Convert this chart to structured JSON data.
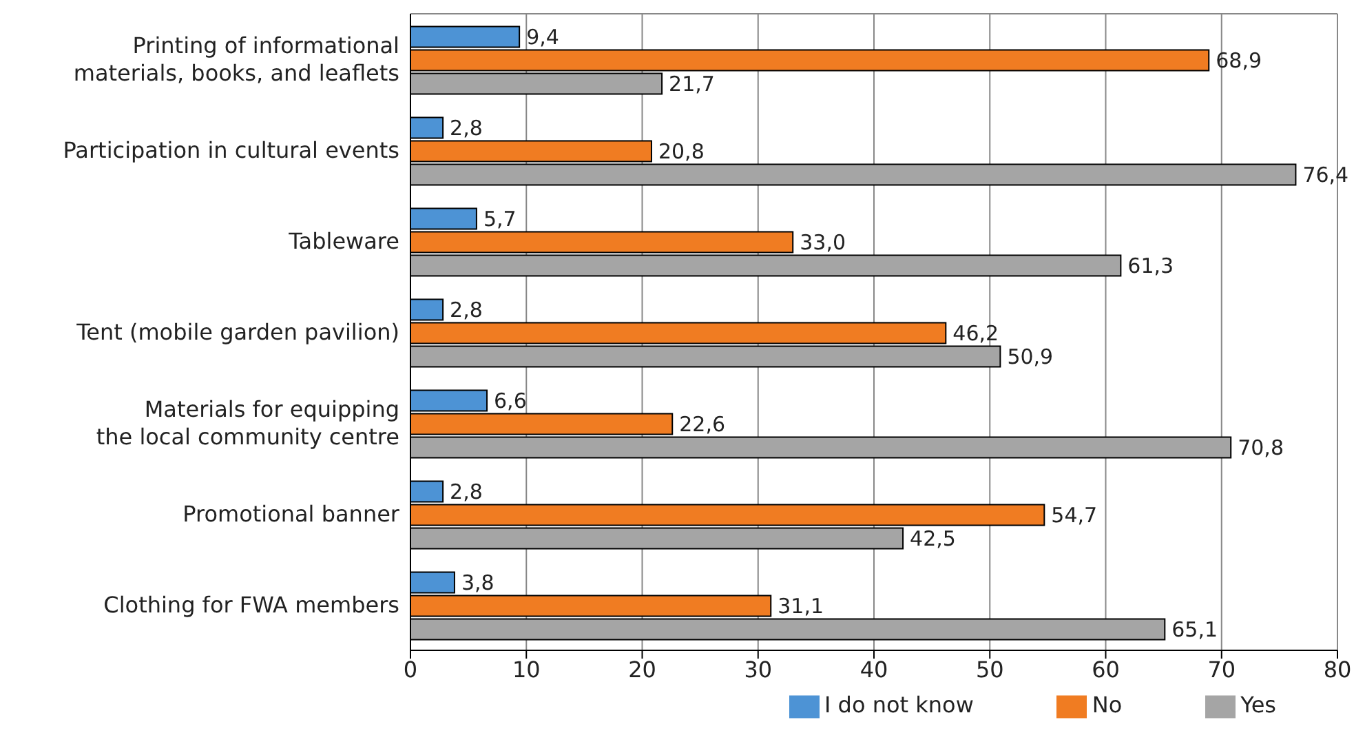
{
  "chart_data": {
    "type": "bar",
    "orientation": "horizontal",
    "categories": [
      "Printing of informational materials, books, and leaflets",
      "Participation in cultural events",
      "Tableware",
      "Tent (mobile garden pavilion)",
      "Materials for equipping the local community centre",
      "Promotional banner",
      "Clothing for FWA members"
    ],
    "series": [
      {
        "name": "I do not know",
        "color": "#4d93d5",
        "values": [
          9.4,
          2.8,
          5.7,
          2.8,
          6.6,
          2.8,
          3.8
        ],
        "value_labels": [
          "9,4",
          "2,8",
          "5,7",
          "2,8",
          "6,6",
          "2,8",
          "3,8"
        ]
      },
      {
        "name": "No",
        "color": "#f07c22",
        "values": [
          68.9,
          20.8,
          33.0,
          46.2,
          22.6,
          54.7,
          31.1
        ],
        "value_labels": [
          "68,9",
          "20,8",
          "33,0",
          "46,2",
          "22,6",
          "54,7",
          "31,1"
        ]
      },
      {
        "name": "Yes",
        "color": "#a5a5a5",
        "values": [
          21.7,
          76.4,
          61.3,
          50.9,
          70.8,
          42.5,
          65.1
        ],
        "value_labels": [
          "21,7",
          "76,4",
          "61,3",
          "50,9",
          "70,8",
          "42,5",
          "65,1"
        ]
      }
    ],
    "xlim": [
      0,
      80
    ],
    "xticks": [
      0,
      10,
      20,
      30,
      40,
      50,
      60,
      70,
      80
    ],
    "grid": "x",
    "legend": "bottom"
  }
}
